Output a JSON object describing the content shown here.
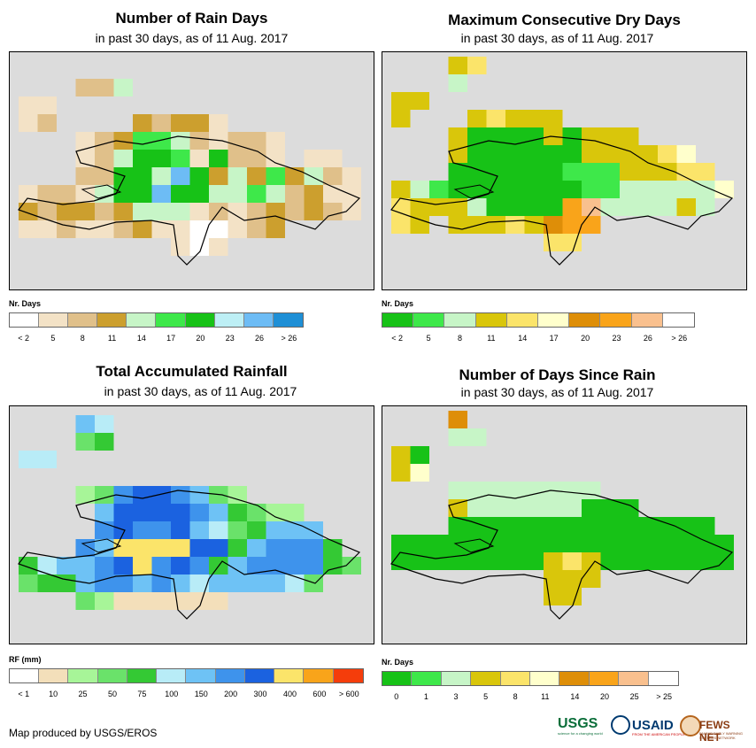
{
  "panels": [
    {
      "title": "Number of Rain Days",
      "subtitle": "in past 30 days, as of 11 Aug. 2017",
      "legend": {
        "title": "Nr. Days",
        "colors": [
          "#ffffff",
          "#f3e2c6",
          "#e0c08a",
          "#cc9f2e",
          "#c7f5c7",
          "#3ee84a",
          "#17c217",
          "#bdeff5",
          "#6dbcf5",
          "#1e8fd6"
        ],
        "labels": [
          "< 2",
          "5",
          "8",
          "11",
          "14",
          "17",
          "20",
          "23",
          "26",
          "> 26"
        ]
      }
    },
    {
      "title": "Maximum Consecutive Dry Days",
      "subtitle": "in past 30 days, as of 11 Aug. 2017",
      "legend": {
        "title": "Nr. Days",
        "colors": [
          "#17c217",
          "#3ee84a",
          "#c7f5c7",
          "#d9c60b",
          "#fbe46a",
          "#ffffcc",
          "#de8e08",
          "#f9a41a",
          "#f9c08e",
          "#ffffff"
        ],
        "labels": [
          "< 2",
          "5",
          "8",
          "11",
          "14",
          "17",
          "20",
          "23",
          "26",
          "> 26"
        ]
      }
    },
    {
      "title": "Total Accumulated Rainfall",
      "subtitle": "in past 30 days, as of 11 Aug. 2017",
      "legend": {
        "title": "RF (mm)",
        "colors": [
          "#ffffff",
          "#f3dfba",
          "#a7f598",
          "#6ae26a",
          "#34c934",
          "#b8ecf7",
          "#6ec2f5",
          "#3e93ec",
          "#1b62e0",
          "#fbe46a",
          "#f9a41a",
          "#f53d0b"
        ],
        "labels": [
          "< 1",
          "10",
          "25",
          "50",
          "75",
          "100",
          "150",
          "200",
          "300",
          "400",
          "600",
          "> 600"
        ]
      }
    },
    {
      "title": "Number of Days Since Rain",
      "subtitle": "in past 30 days, as of 11 Aug. 2017",
      "legend": {
        "title": "Nr. Days",
        "colors": [
          "#17c217",
          "#3ee84a",
          "#c7f5c7",
          "#d9c60b",
          "#fbe46a",
          "#ffffcc",
          "#de8e08",
          "#f9a41a",
          "#f9c08e",
          "#ffffff"
        ],
        "labels": [
          "0",
          "1",
          "3",
          "5",
          "8",
          "11",
          "14",
          "20",
          "25",
          "> 25"
        ]
      }
    }
  ],
  "credit": "Map produced by USGS/EROS",
  "logos": {
    "usgs": "USGS",
    "usgs_tagline": "science for a changing world",
    "usaid": "USAID",
    "usaid_tagline": "FROM THE AMERICAN PEOPLE",
    "fews": "FEWS NET",
    "fews_tagline": "FAMINE EARLY WARNING SYSTEMS NETWORK"
  }
}
